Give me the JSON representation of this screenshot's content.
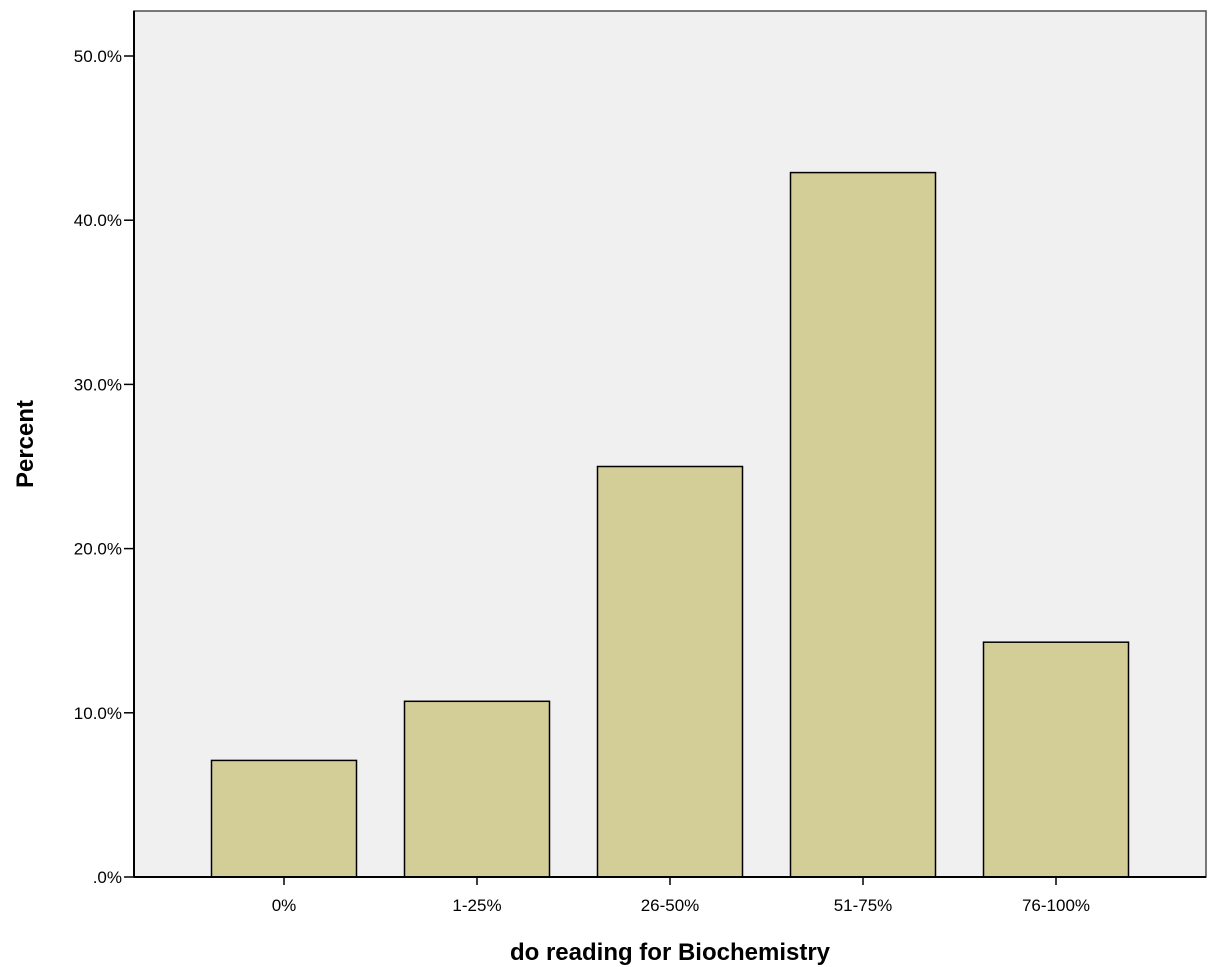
{
  "chart_data": {
    "type": "bar",
    "categories": [
      "0%",
      "1-25%",
      "26-50%",
      "51-75%",
      "76-100%"
    ],
    "values": [
      7.1,
      10.7,
      25.0,
      42.9,
      14.3
    ],
    "title": "",
    "xlabel": "do reading for Biochemistry",
    "ylabel": "Percent",
    "ylim": [
      0,
      50
    ],
    "yticks": [
      0,
      10,
      20,
      30,
      40,
      50
    ],
    "ytick_labels": [
      ".0%",
      "10.0%",
      "20.0%",
      "30.0%",
      "40.0%",
      "50.0%"
    ],
    "grid": false,
    "legend": "none",
    "colors": {
      "plot_background": "#f0f0f0",
      "bar_fill": "#d3ce97",
      "bar_stroke": "#000000",
      "axis": "#000000",
      "frame": "#4d4d4d"
    }
  }
}
